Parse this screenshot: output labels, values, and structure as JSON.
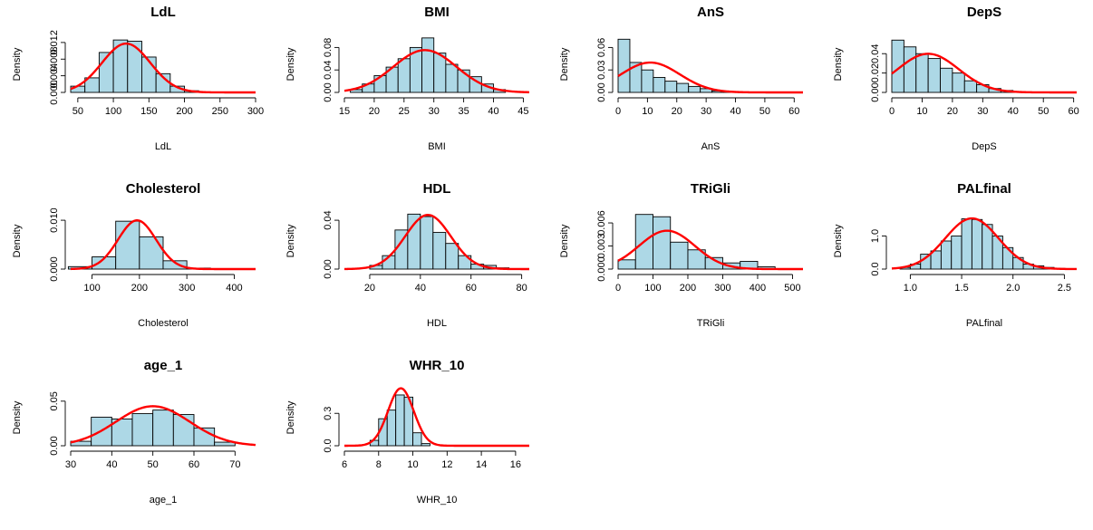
{
  "colors": {
    "bar_fill": "#add8e6",
    "bar_stroke": "#000000",
    "density_curve": "#ff0000"
  },
  "chart_data": [
    {
      "type": "bar",
      "title": "LdL",
      "xlabel": "LdL",
      "ylabel": "Density",
      "xlim": [
        40,
        300
      ],
      "ylim": [
        0,
        0.0135
      ],
      "xticks": [
        "50",
        "100",
        "150",
        "200",
        "250",
        "300"
      ],
      "yticks": [
        "0.000",
        "0.004",
        "0.008",
        "0.012"
      ],
      "bin_edges": [
        40,
        60,
        80,
        100,
        120,
        140,
        160,
        180,
        200,
        220
      ],
      "values": [
        0.0015,
        0.0035,
        0.0096,
        0.0126,
        0.0123,
        0.0085,
        0.0045,
        0.0015,
        0.0004
      ],
      "normal_fit": {
        "mean": 118,
        "sd": 34
      }
    },
    {
      "type": "bar",
      "title": "BMI",
      "xlabel": "BMI",
      "ylabel": "Density",
      "xlim": [
        15,
        46
      ],
      "ylim": [
        0,
        0.1
      ],
      "xticks": [
        "15",
        "20",
        "25",
        "30",
        "35",
        "40",
        "45"
      ],
      "yticks": [
        "0.00",
        "0.04",
        "0.08"
      ],
      "bin_edges": [
        16,
        18,
        20,
        22,
        24,
        26,
        28,
        30,
        32,
        34,
        36,
        38,
        40,
        42
      ],
      "values": [
        0.005,
        0.015,
        0.03,
        0.045,
        0.06,
        0.08,
        0.097,
        0.07,
        0.05,
        0.04,
        0.028,
        0.015,
        0.005
      ],
      "normal_fit": {
        "mean": 28.5,
        "sd": 5.3
      }
    },
    {
      "type": "bar",
      "title": "AnS",
      "xlabel": "AnS",
      "ylabel": "Density",
      "xlim": [
        0,
        63
      ],
      "ylim": [
        0,
        0.075
      ],
      "xticks": [
        "0",
        "10",
        "20",
        "30",
        "40",
        "50",
        "60"
      ],
      "yticks": [
        "0.00",
        "0.03",
        "0.06"
      ],
      "bin_edges": [
        0,
        4,
        8,
        12,
        16,
        20,
        24,
        28,
        32,
        36,
        40
      ],
      "values": [
        0.071,
        0.04,
        0.03,
        0.02,
        0.015,
        0.012,
        0.008,
        0.005,
        0.002,
        0.001
      ],
      "normal_fit": {
        "mean": 11,
        "sd": 10
      }
    },
    {
      "type": "bar",
      "title": "DepS",
      "xlabel": "DepS",
      "ylabel": "Density",
      "xlim": [
        0,
        61
      ],
      "ylim": [
        0,
        0.058
      ],
      "xticks": [
        "0",
        "10",
        "20",
        "30",
        "40",
        "50",
        "60"
      ],
      "yticks": [
        "0.00",
        "0.02",
        "0.04"
      ],
      "bin_edges": [
        0,
        4,
        8,
        12,
        16,
        20,
        24,
        28,
        32,
        36,
        40,
        44
      ],
      "values": [
        0.054,
        0.047,
        0.04,
        0.035,
        0.025,
        0.02,
        0.012,
        0.008,
        0.004,
        0.002,
        0.0005
      ],
      "normal_fit": {
        "mean": 12,
        "sd": 10
      }
    },
    {
      "type": "bar",
      "title": "Cholesterol",
      "xlabel": "Cholesterol",
      "ylabel": "Density",
      "xlim": [
        55,
        445
      ],
      "ylim": [
        0,
        0.0115
      ],
      "xticks": [
        "100",
        "200",
        "300",
        "400"
      ],
      "yticks": [
        "0.000",
        "0.010"
      ],
      "bin_edges": [
        50,
        100,
        150,
        200,
        250,
        300,
        350
      ],
      "values": [
        0.0005,
        0.0025,
        0.0098,
        0.0066,
        0.0017,
        0.0002
      ],
      "normal_fit": {
        "mean": 195,
        "sd": 40
      }
    },
    {
      "type": "bar",
      "title": "HDL",
      "xlabel": "HDL",
      "ylabel": "Density",
      "xlim": [
        10,
        83
      ],
      "ylim": [
        0,
        0.046
      ],
      "xticks": [
        "20",
        "40",
        "60",
        "80"
      ],
      "yticks": [
        "0.00",
        "0.04"
      ],
      "bin_edges": [
        20,
        25,
        30,
        35,
        40,
        45,
        50,
        55,
        60,
        65,
        70,
        75
      ],
      "values": [
        0.003,
        0.011,
        0.032,
        0.045,
        0.043,
        0.03,
        0.021,
        0.011,
        0.004,
        0.003,
        0.001
      ],
      "normal_fit": {
        "mean": 43,
        "sd": 9
      }
    },
    {
      "type": "bar",
      "title": "TRiGli",
      "xlabel": "TRiGli",
      "ylabel": "Density",
      "xlim": [
        0,
        530
      ],
      "ylim": [
        0,
        0.0073
      ],
      "xticks": [
        "0",
        "100",
        "200",
        "300",
        "400",
        "500"
      ],
      "yticks": [
        "0.000",
        "0.003",
        "0.006"
      ],
      "bin_edges": [
        0,
        50,
        100,
        150,
        200,
        250,
        300,
        350,
        400,
        450
      ],
      "values": [
        0.0012,
        0.0071,
        0.0068,
        0.0035,
        0.0025,
        0.0015,
        0.0008,
        0.001,
        0.0003
      ],
      "normal_fit": {
        "mean": 140,
        "sd": 80
      }
    },
    {
      "type": "bar",
      "title": "PALfinal",
      "xlabel": "PALfinal",
      "ylabel": "Density",
      "xlim": [
        0.82,
        2.62
      ],
      "ylim": [
        0,
        1.7
      ],
      "xticks": [
        "1.0",
        "1.5",
        "2.0",
        "2.5"
      ],
      "yticks": [
        "0.0",
        "1.0"
      ],
      "bin_edges": [
        0.9,
        1.0,
        1.1,
        1.2,
        1.3,
        1.4,
        1.5,
        1.6,
        1.7,
        1.8,
        1.9,
        2.0,
        2.1,
        2.2,
        2.3,
        2.4,
        2.5
      ],
      "values": [
        0.05,
        0.15,
        0.45,
        0.55,
        0.85,
        1.0,
        1.52,
        1.5,
        1.35,
        1.0,
        0.65,
        0.35,
        0.15,
        0.1,
        0.05,
        0.02
      ],
      "normal_fit": {
        "mean": 1.6,
        "sd": 0.26
      }
    },
    {
      "type": "bar",
      "title": "age_1",
      "xlabel": "age_1",
      "ylabel": "Density",
      "xlim": [
        30,
        75
      ],
      "ylim": [
        0,
        0.063
      ],
      "xticks": [
        "30",
        "40",
        "50",
        "60",
        "70"
      ],
      "yticks": [
        "0.00",
        "0.05"
      ],
      "bin_edges": [
        30,
        35,
        40,
        45,
        50,
        55,
        60,
        65,
        70
      ],
      "values": [
        0.005,
        0.032,
        0.03,
        0.036,
        0.04,
        0.035,
        0.02,
        0.004
      ],
      "normal_fit": {
        "mean": 50,
        "sd": 9
      }
    },
    {
      "type": "bar",
      "title": "WHR_10",
      "xlabel": "WHR_10",
      "ylabel": "Density",
      "xlim": [
        6,
        16.8
      ],
      "ylim": [
        0,
        0.52
      ],
      "xticks": [
        "6",
        "8",
        "10",
        "12",
        "14",
        "16"
      ],
      "yticks": [
        "0.0",
        "0.3"
      ],
      "bin_edges": [
        7.5,
        8.0,
        8.5,
        9.0,
        9.5,
        10.0,
        10.5,
        11.0
      ],
      "values": [
        0.05,
        0.25,
        0.33,
        0.47,
        0.45,
        0.12,
        0.02
      ],
      "normal_fit": {
        "mean": 9.3,
        "sd": 0.75
      }
    }
  ]
}
